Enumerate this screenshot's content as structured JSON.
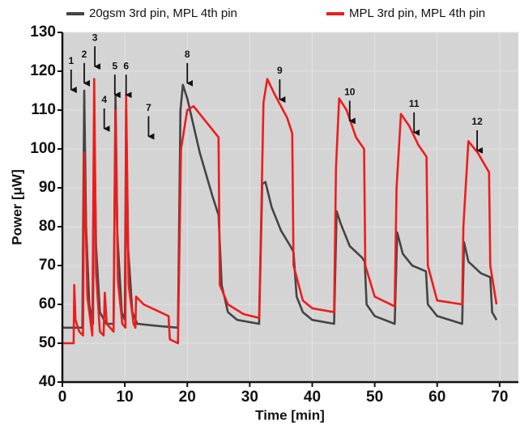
{
  "chart_data": {
    "type": "line",
    "x_label": "Time [min]",
    "y_label": "Power [μW]",
    "xlim": [
      0,
      73
    ],
    "ylim": [
      40,
      130
    ],
    "xticks": [
      0,
      10,
      20,
      30,
      40,
      50,
      60,
      70
    ],
    "yticks": [
      40,
      50,
      60,
      70,
      80,
      90,
      100,
      110,
      120,
      130
    ],
    "grid": true,
    "series": [
      {
        "name": "20gsm 3rd pin, MPL 4th pin",
        "color": "#444444",
        "x": [
          0,
          2,
          3.2,
          3.5,
          3.8,
          4.3,
          4.9,
          5.1,
          5.4,
          6,
          7,
          8.2,
          8.5,
          8.8,
          9.5,
          10,
          10.2,
          10.5,
          11.2,
          12,
          15,
          18.5,
          18.9,
          19.3,
          20,
          22,
          24,
          25,
          25.5,
          26.5,
          28,
          31.5,
          32,
          32.5,
          33.5,
          35,
          36.5,
          37,
          37.5,
          38.5,
          40,
          43.5,
          43.9,
          44.5,
          46,
          48,
          48.4,
          48.7,
          50,
          53.2,
          53.6,
          54.5,
          56,
          58.2,
          58.5,
          60,
          64,
          64.3,
          65,
          67,
          68.5,
          68.8,
          69.5
        ],
        "values": [
          54,
          54,
          54,
          115,
          80,
          60,
          55,
          108,
          75,
          58,
          55,
          55,
          114,
          78,
          58,
          56,
          110,
          75,
          58,
          55,
          54.5,
          54,
          110,
          116.5,
          113,
          99,
          88,
          83,
          65,
          58,
          56,
          55,
          91,
          91.5,
          85,
          79,
          75,
          73.5,
          62,
          58,
          56,
          55,
          84,
          81,
          75,
          72,
          71,
          60,
          57,
          55,
          78.5,
          73,
          70,
          68.5,
          60,
          57,
          55,
          76,
          71,
          68,
          67,
          58,
          56
        ]
      },
      {
        "name": "MPL 3rd pin, MPL 4th pin",
        "color": "#ee1c1c",
        "x": [
          0,
          1.8,
          1.9,
          2.1,
          2.7,
          3.3,
          3.5,
          4,
          4.8,
          5.1,
          5.4,
          6,
          6.6,
          6.8,
          7.1,
          8.2,
          8.5,
          8.9,
          9.6,
          10.1,
          10.2,
          10.6,
          11.4,
          11.7,
          11.8,
          13,
          15,
          17,
          17.2,
          18.5,
          19,
          20,
          21,
          23,
          25,
          25.2,
          26.5,
          29,
          31.5,
          31.8,
          32.2,
          32.8,
          34,
          36,
          36.8,
          37,
          38.5,
          40,
          43.5,
          43.8,
          44.3,
          45.5,
          47,
          48.3,
          48.5,
          50,
          53.2,
          53.5,
          54.2,
          55.5,
          57,
          58.3,
          58.5,
          60,
          64,
          64.2,
          65,
          66.5,
          68.3,
          68.5,
          69.5
        ],
        "values": [
          50,
          50,
          65,
          56,
          53,
          52,
          99,
          62,
          52,
          118,
          68,
          53,
          52,
          63,
          55,
          53,
          110,
          66,
          55,
          54,
          114,
          65,
          55,
          54,
          62,
          60,
          58.5,
          57,
          51,
          50,
          100,
          110,
          111,
          107,
          103,
          65,
          60,
          57.5,
          56.5,
          80,
          112,
          118,
          114,
          108,
          104,
          70,
          61,
          59,
          58,
          95,
          113,
          110,
          103,
          100,
          70,
          62,
          59.5,
          90,
          109,
          106,
          101,
          98,
          70,
          61,
          60,
          80,
          102,
          99,
          94,
          70,
          60
        ]
      }
    ],
    "annotations": [
      {
        "text": "1",
        "x": 1.4,
        "y": 115
      },
      {
        "text": "2",
        "x": 3.5,
        "y": 116.7
      },
      {
        "text": "3",
        "x": 5.2,
        "y": 121
      },
      {
        "text": "4",
        "x": 6.7,
        "y": 105
      },
      {
        "text": "5",
        "x": 8.4,
        "y": 113.7
      },
      {
        "text": "6",
        "x": 10.2,
        "y": 113.7
      },
      {
        "text": "7",
        "x": 13.8,
        "y": 103
      },
      {
        "text": "8",
        "x": 20,
        "y": 116.7
      },
      {
        "text": "9",
        "x": 34.8,
        "y": 112.5
      },
      {
        "text": "10",
        "x": 46,
        "y": 107
      },
      {
        "text": "11",
        "x": 56.3,
        "y": 104
      },
      {
        "text": "12",
        "x": 66.4,
        "y": 99.4
      }
    ]
  }
}
